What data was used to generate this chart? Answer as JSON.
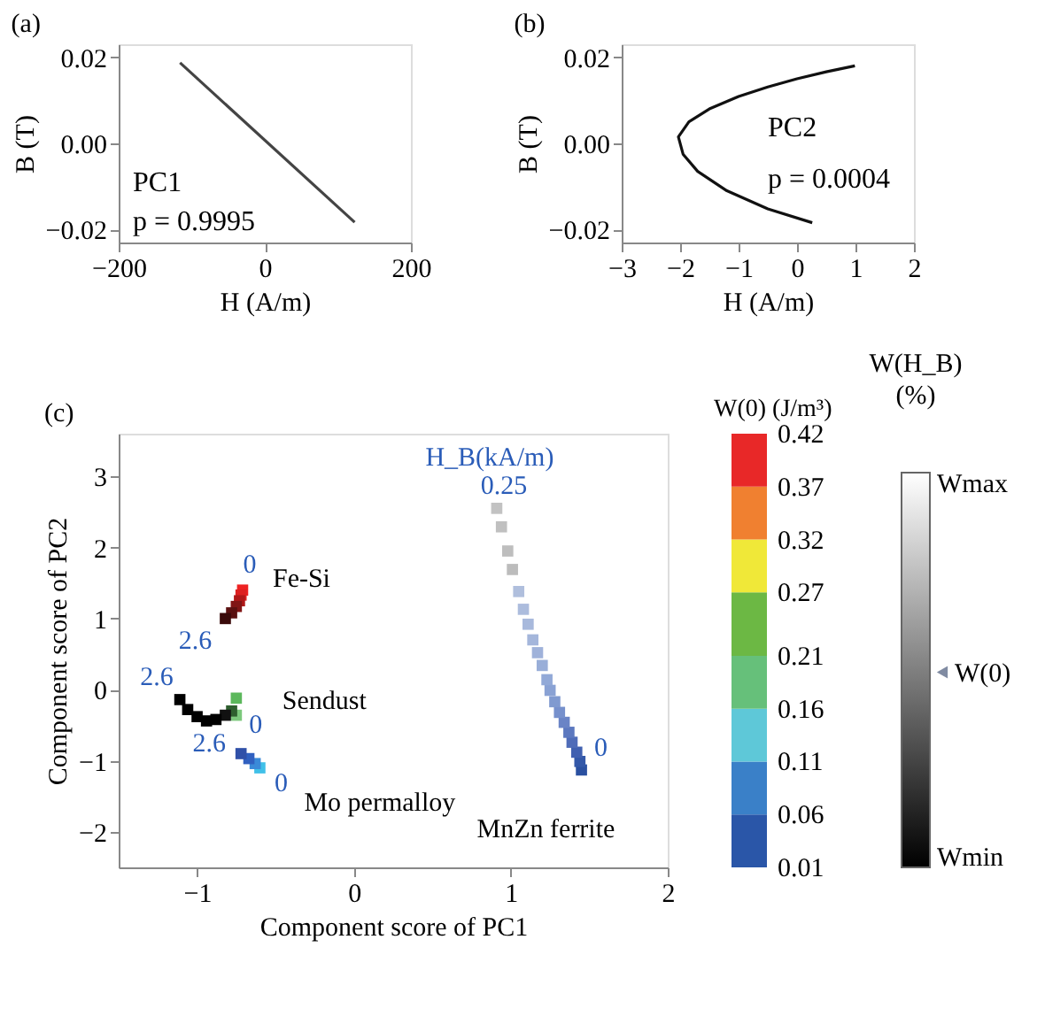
{
  "chart_data": [
    {
      "type": "line",
      "title": "(a)",
      "xlabel": "H (A/m)",
      "ylabel": "B (T)",
      "xlim": [
        -200,
        200
      ],
      "ylim": [
        -0.023,
        0.023
      ],
      "xticks": [
        -200,
        0,
        200
      ],
      "yticks": [
        -0.02,
        {
          "value": 0,
          "label": "0.00"
        },
        0.02
      ],
      "grid": false,
      "line_style": "solid",
      "annotations": [
        "PC1",
        "p = 0.9995"
      ],
      "series": [
        {
          "color": "#444444",
          "x": [
            -116,
            123
          ],
          "values": [
            0.0187,
            -0.0183
          ]
        }
      ]
    },
    {
      "type": "line",
      "title": "(b)",
      "xlabel": "H (A/m)",
      "ylabel": "B (T)",
      "xlim": [
        -3,
        2
      ],
      "ylim": [
        -0.023,
        0.023
      ],
      "xticks": [
        -3,
        -2,
        -1,
        0,
        1,
        2
      ],
      "yticks": [
        -0.02,
        {
          "value": 0,
          "label": "0.00"
        },
        0.02
      ],
      "grid": false,
      "line_style": "solid",
      "annotations": [
        "PC2",
        "p = 0.0004"
      ],
      "series": [
        {
          "color": "#111111",
          "x": [
            0.99,
            0.5,
            0.0,
            -0.5,
            -1.0,
            -1.5,
            -1.85,
            -2.03,
            -1.95,
            -1.7,
            -1.2,
            -0.5,
            0.26
          ],
          "values": [
            0.018,
            0.0166,
            0.015,
            0.0131,
            0.0109,
            0.008,
            0.005,
            0.0015,
            -0.0025,
            -0.0065,
            -0.011,
            -0.0152,
            -0.0184
          ]
        }
      ]
    },
    {
      "type": "scatter",
      "title": "(c)",
      "xlabel": "Component score of PC1",
      "ylabel": "Component score of PC2",
      "xlim": [
        -1.5,
        2
      ],
      "ylim": [
        -2.5,
        3.6
      ],
      "xticks": [
        -1,
        0,
        1,
        2
      ],
      "yticks": [
        -2,
        -1,
        0,
        1,
        2,
        3
      ],
      "grid": false,
      "marker": "square",
      "clabel": "W(0) (J/m³)",
      "clim": [
        0.01,
        0.42
      ],
      "cticks": [
        0.01,
        0.06,
        0.11,
        0.16,
        0.21,
        0.27,
        0.32,
        0.37,
        0.42
      ],
      "series": [
        {
          "name": "Fe-Si",
          "x": [
            -0.71,
            -0.72,
            -0.73,
            -0.75,
            -0.78,
            -0.82
          ],
          "values": [
            1.4,
            1.33,
            1.25,
            1.17,
            1.08,
            1.0
          ],
          "colors": [
            "#ee2222",
            "#dd2020",
            "#b01818",
            "#801515",
            "#5a1010",
            "#3a0a0a"
          ]
        },
        {
          "name": "Sendust",
          "x": [
            -0.75,
            -0.75,
            -0.78,
            -0.82,
            -0.88,
            -0.94,
            -1.0,
            -1.06,
            -1.11
          ],
          "values": [
            -0.12,
            -0.36,
            -0.3,
            -0.36,
            -0.42,
            -0.44,
            -0.38,
            -0.28,
            -0.14
          ],
          "colors": [
            "#5cb85c",
            "#7cc87c",
            "#2e5e2e",
            "#111111",
            "#000000",
            "#000000",
            "#000000",
            "#000000",
            "#000000"
          ]
        },
        {
          "name": "Mo permalloy",
          "x": [
            -0.6,
            -0.63,
            -0.67,
            -0.72
          ],
          "values": [
            -1.1,
            -1.04,
            -0.97,
            -0.9
          ],
          "colors": [
            "#40c0e8",
            "#3a8ad8",
            "#3060c0",
            "#3050a8"
          ]
        },
        {
          "name": "MnZn ferrite",
          "x": [
            1.45,
            1.44,
            1.42,
            1.39,
            1.37,
            1.34,
            1.31,
            1.28,
            1.25,
            1.23,
            1.2,
            1.17,
            1.14,
            1.11,
            1.08,
            1.05,
            1.01,
            0.98,
            0.94,
            0.91
          ],
          "values": [
            -1.13,
            -1.01,
            -0.88,
            -0.74,
            -0.6,
            -0.46,
            -0.32,
            -0.17,
            -0.01,
            0.14,
            0.34,
            0.52,
            0.7,
            0.92,
            1.13,
            1.38,
            1.69,
            1.95,
            2.29,
            2.55
          ],
          "colors": [
            "#2a50a0",
            "#3358a8",
            "#4060b0",
            "#4f6cb8",
            "#5c78bf",
            "#6a84c6",
            "#7690cc",
            "#809ad0",
            "#8aa2d4",
            "#92a9d7",
            "#99aed8",
            "#9fb2da",
            "#a4b6db",
            "#a8b9dc",
            "#acbcdd",
            "#b0bfdd",
            "#bcbcbc",
            "#bebebe",
            "#c0c0c0",
            "#c2c2c2"
          ]
        }
      ],
      "annotations": [
        {
          "text": "H_B(kA/m)",
          "x": 0.91,
          "y": 2.55
        },
        {
          "text": "0.25",
          "x": 0.91,
          "y": 2.55
        },
        {
          "text": "0",
          "x": 1.45,
          "y": -1.13
        },
        {
          "text": "0",
          "x": -0.71,
          "y": 1.4
        },
        {
          "text": "2.6",
          "x": -0.82,
          "y": 1.0
        },
        {
          "text": "2.6",
          "x": -1.11,
          "y": -0.14
        },
        {
          "text": "0",
          "x": -0.75,
          "y": -0.36
        },
        {
          "text": "2.6",
          "x": -0.72,
          "y": -0.9
        },
        {
          "text": "0",
          "x": -0.6,
          "y": -1.1
        },
        "W(H_B)",
        "(%)",
        "Wmax",
        "W(0)",
        "Wmin"
      ]
    }
  ]
}
